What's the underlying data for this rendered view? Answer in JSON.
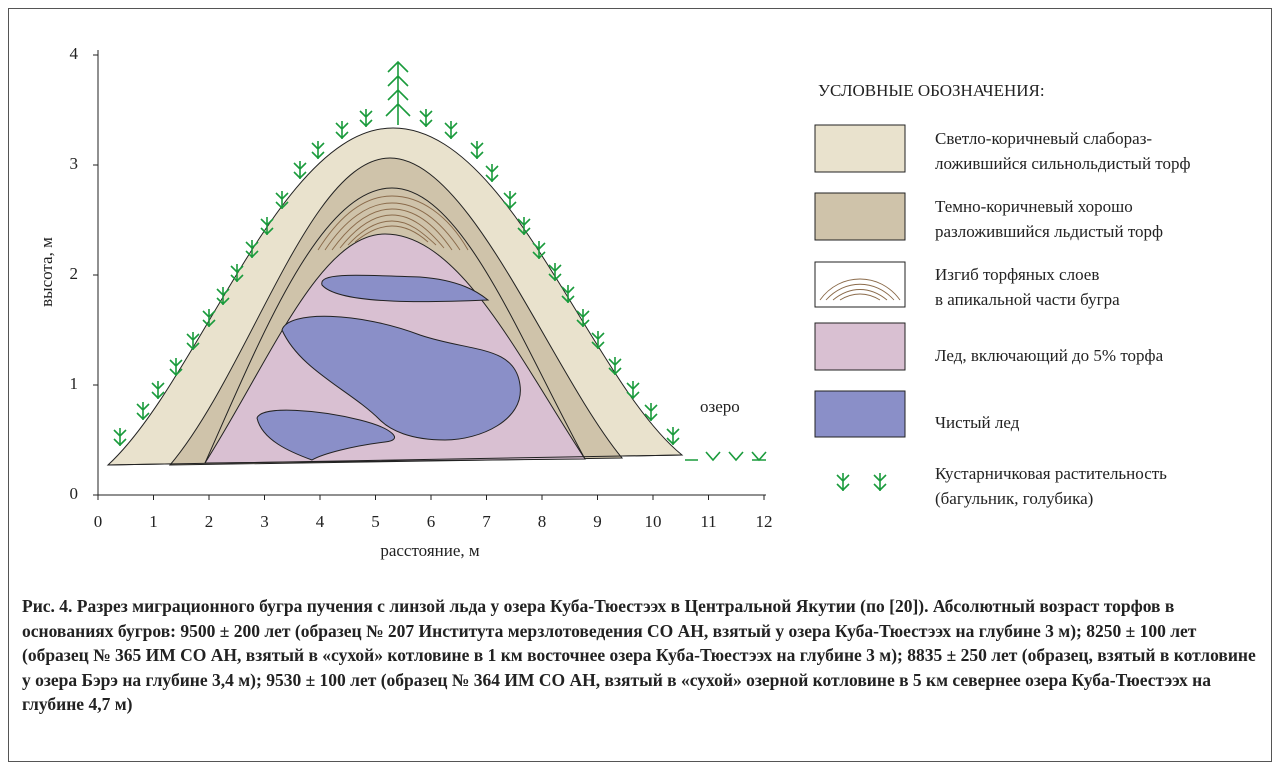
{
  "figure": {
    "xticks": [
      0,
      1,
      2,
      3,
      4,
      5,
      6,
      7,
      8,
      9,
      10,
      11,
      12
    ],
    "yticks": [
      0,
      1,
      2,
      3,
      4
    ],
    "x_label": "расстояние, м",
    "y_label": "высота, м",
    "lake_label": "озеро",
    "legend": {
      "title": "УСЛОВНЫЕ ОБОЗНАЧЕНИЯ:",
      "items": [
        {
          "lines": [
            "Светло-коричневый слабораз-",
            "ложившийся сильнольдистый торф"
          ]
        },
        {
          "lines": [
            "Темно-коричневый хорошо",
            "разложившийся льдистый торф"
          ]
        },
        {
          "lines": [
            "Изгиб торфяных слоев",
            "в апикальной части бугра"
          ]
        },
        {
          "lines": [
            "Лед, включающий до 5% торфа"
          ]
        },
        {
          "lines": [
            "Чистый лед"
          ]
        },
        {
          "lines": [
            "Кустарничковая растительность",
            "(багульник, голубика)"
          ]
        }
      ]
    },
    "caption": "Рис. 4. Разрез миграционного бугра пучения с линзой льда у озера Куба-Тюестээх в Центральной Якутии (по [20]). Абсолютный возраст торфов в основаниях бугров: 9500 ± 200 лет (образец № 207 Института мерзлотоведения СО АН, взятый у озера Куба-Тюестээх на глубине 3 м); 8250 ± 100 лет (образец № 365 ИМ СО АН, взятый в «сухой» котловине в 1 км восточнее озера Куба-Тюестээх на глубине 3 м); 8835 ± 250 лет (образец, взятый в котловине у озера Бэрэ на глубине 3,4 м); 9530 ± 100 лет (образец № 364 ИМ СО АН, взятый в «сухой» озерной котловине в 5 км севернее озера Куба-Тюестээх на глубине 4,7 м)"
  }
}
